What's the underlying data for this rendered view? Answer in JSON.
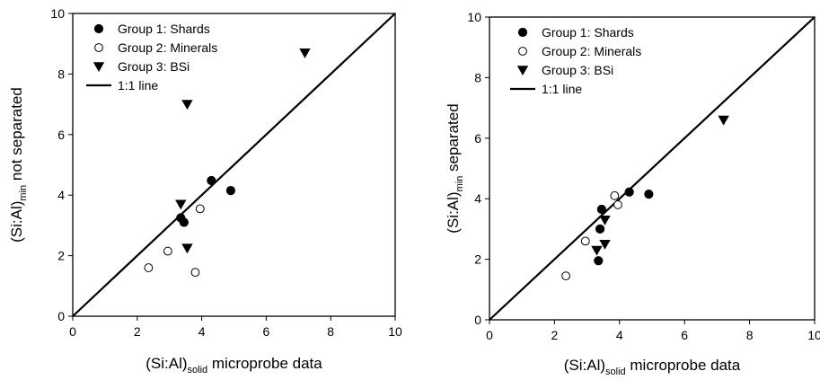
{
  "chart_data": [
    {
      "type": "scatter",
      "title": "",
      "xlabel": {
        "main": "(Si:Al)",
        "sub": "solid",
        "rest": " microprobe data"
      },
      "ylabel": {
        "main": "(Si:Al)",
        "sub": "min",
        "rest": " not separated"
      },
      "xlim": [
        0,
        10
      ],
      "ylim": [
        0,
        10
      ],
      "xticks": [
        "0",
        "2",
        "4",
        "6",
        "8",
        "10"
      ],
      "yticks": [
        "0",
        "2",
        "4",
        "6",
        "8",
        "10"
      ],
      "grid": false,
      "legend_position": "top-left",
      "series": [
        {
          "name": "Group 1: Shards",
          "marker": "filled-circle",
          "points": [
            [
              3.35,
              3.25
            ],
            [
              3.45,
              3.1
            ],
            [
              4.3,
              4.48
            ],
            [
              4.9,
              4.15
            ]
          ]
        },
        {
          "name": "Group 2: Minerals",
          "marker": "open-circle",
          "points": [
            [
              2.35,
              1.6
            ],
            [
              2.95,
              2.15
            ],
            [
              3.8,
              1.45
            ],
            [
              3.95,
              3.55
            ]
          ]
        },
        {
          "name": "Group 3: BSi",
          "marker": "filled-triangle-down",
          "points": [
            [
              3.35,
              3.7
            ],
            [
              3.55,
              2.25
            ],
            [
              3.55,
              7.0
            ],
            [
              7.2,
              8.7
            ]
          ]
        }
      ],
      "reference_line": {
        "name": "1:1 line",
        "from": [
          0,
          0
        ],
        "to": [
          10,
          10
        ]
      }
    },
    {
      "type": "scatter",
      "title": "",
      "xlabel": {
        "main": "(Si:Al)",
        "sub": "solid",
        "rest": " microprobe data"
      },
      "ylabel": {
        "main": "(Si:Al)",
        "sub": "min",
        "rest": " separated"
      },
      "xlim": [
        0,
        10
      ],
      "ylim": [
        0,
        10
      ],
      "xticks": [
        "0",
        "2",
        "4",
        "6",
        "8",
        "10"
      ],
      "yticks": [
        "0",
        "2",
        "4",
        "6",
        "8",
        "10"
      ],
      "grid": false,
      "legend_position": "top-left",
      "series": [
        {
          "name": "Group 1: Shards",
          "marker": "filled-circle",
          "points": [
            [
              3.35,
              1.95
            ],
            [
              3.4,
              3.0
            ],
            [
              3.45,
              3.65
            ],
            [
              4.3,
              4.22
            ],
            [
              4.9,
              4.15
            ]
          ]
        },
        {
          "name": "Group 2: Minerals",
          "marker": "open-circle",
          "points": [
            [
              2.35,
              1.45
            ],
            [
              2.95,
              2.6
            ],
            [
              3.85,
              4.1
            ],
            [
              3.95,
              3.8
            ]
          ]
        },
        {
          "name": "Group 3: BSi",
          "marker": "filled-triangle-down",
          "points": [
            [
              3.3,
              2.3
            ],
            [
              3.55,
              3.3
            ],
            [
              3.55,
              2.5
            ],
            [
              7.2,
              6.6
            ]
          ]
        }
      ],
      "reference_line": {
        "name": "1:1 line",
        "from": [
          0,
          0
        ],
        "to": [
          10,
          10
        ]
      }
    }
  ]
}
